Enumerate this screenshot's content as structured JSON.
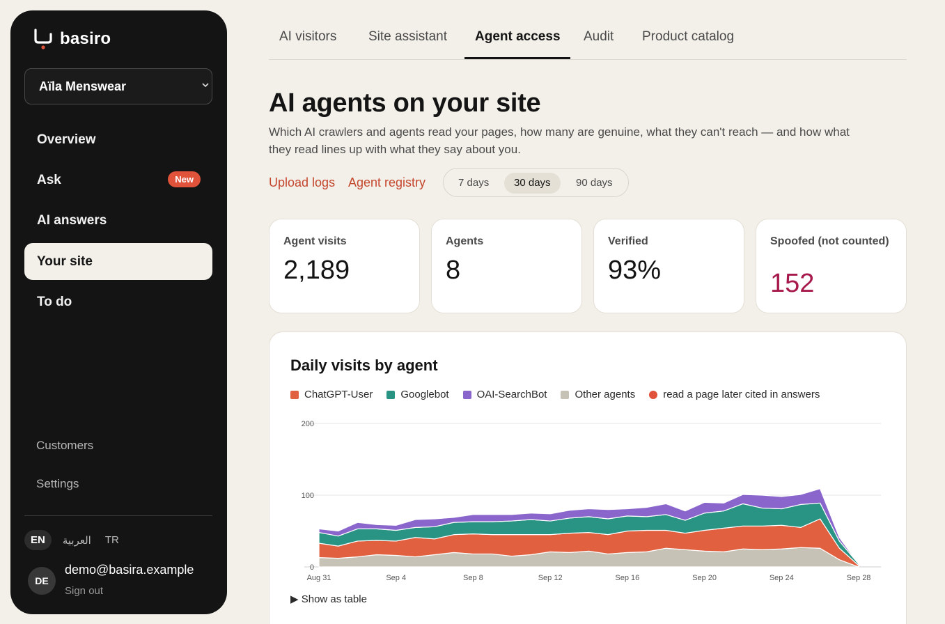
{
  "brand": {
    "name": "basiro"
  },
  "workspace": {
    "selected": "Aïla Menswear"
  },
  "nav": {
    "items": [
      {
        "label": "Overview"
      },
      {
        "label": "Ask",
        "badge": "New"
      },
      {
        "label": "AI answers"
      },
      {
        "label": "Your site",
        "active": true
      },
      {
        "label": "To do"
      }
    ],
    "secondary": [
      {
        "label": "Customers"
      },
      {
        "label": "Settings"
      }
    ]
  },
  "languages": [
    {
      "label": "EN",
      "active": true
    },
    {
      "label": "العربية"
    },
    {
      "label": "TR"
    }
  ],
  "user": {
    "initials": "DE",
    "email": "demo@basira.example",
    "sign_out": "Sign out"
  },
  "tabs": [
    {
      "label": "AI visitors"
    },
    {
      "label": "Site assistant"
    },
    {
      "label": "Agent access",
      "active": true
    },
    {
      "label": "Audit"
    },
    {
      "label": "Product catalog"
    }
  ],
  "page": {
    "title": "AI agents on your site",
    "subtitle": "Which AI crawlers and agents read your pages, how many are genuine, what they can't reach — and how what they read lines up with what they say about you."
  },
  "actions": {
    "upload_logs": "Upload logs",
    "agent_registry": "Agent registry"
  },
  "date_range": {
    "options": [
      "7 days",
      "30 days",
      "90 days"
    ],
    "selected": "30 days"
  },
  "stats": [
    {
      "label": "Agent visits",
      "value": "2,189"
    },
    {
      "label": "Agents",
      "value": "8"
    },
    {
      "label": "Verified",
      "value": "93%"
    },
    {
      "label": "Spoofed (not counted)",
      "value": "152"
    }
  ],
  "chart": {
    "show_table": "Show as table"
  },
  "colors": {
    "chatgpt": "#e0603f",
    "googlebot": "#2a9484",
    "oai": "#8a66cc",
    "other": "#c7c2b6",
    "cited": "#e0533a",
    "accent": "#c4462d",
    "alert": "#a6194a"
  },
  "chart_data": {
    "type": "area",
    "stacked": true,
    "title": "Daily visits by agent",
    "x_tick_labels": [
      "Aug 31",
      "Sep 4",
      "Sep 8",
      "Sep 12",
      "Sep 16",
      "Sep 20",
      "Sep 24",
      "Sep 28"
    ],
    "ylim": [
      0,
      200
    ],
    "y_ticks": [
      0,
      100,
      200
    ],
    "grid": true,
    "legend_position": "top",
    "x": [
      "Aug 31",
      "Sep 1",
      "Sep 2",
      "Sep 3",
      "Sep 4",
      "Sep 5",
      "Sep 6",
      "Sep 7",
      "Sep 8",
      "Sep 9",
      "Sep 10",
      "Sep 11",
      "Sep 12",
      "Sep 13",
      "Sep 14",
      "Sep 15",
      "Sep 16",
      "Sep 17",
      "Sep 18",
      "Sep 19",
      "Sep 20",
      "Sep 21",
      "Sep 22",
      "Sep 23",
      "Sep 24",
      "Sep 25",
      "Sep 26",
      "Sep 27",
      "Sep 28"
    ],
    "series": [
      {
        "name": "Other agents",
        "values": [
          13,
          12,
          14,
          17,
          16,
          14,
          17,
          20,
          18,
          18,
          15,
          17,
          21,
          20,
          22,
          18,
          20,
          21,
          26,
          24,
          22,
          21,
          25,
          24,
          25,
          27,
          26,
          10,
          0
        ]
      },
      {
        "name": "ChatGPT-User",
        "values": [
          20,
          17,
          22,
          20,
          20,
          27,
          22,
          25,
          28,
          27,
          30,
          28,
          24,
          27,
          26,
          27,
          30,
          30,
          25,
          23,
          29,
          33,
          32,
          33,
          33,
          28,
          41,
          16,
          2
        ]
      },
      {
        "name": "Googlebot",
        "values": [
          15,
          14,
          17,
          16,
          15,
          14,
          17,
          17,
          17,
          18,
          19,
          21,
          19,
          21,
          22,
          22,
          21,
          19,
          22,
          18,
          24,
          24,
          31,
          25,
          23,
          32,
          22,
          10,
          2
        ]
      },
      {
        "name": "OAI-SearchBot",
        "values": [
          5,
          7,
          9,
          6,
          7,
          11,
          11,
          7,
          10,
          10,
          9,
          9,
          10,
          11,
          11,
          13,
          10,
          13,
          15,
          13,
          15,
          11,
          13,
          18,
          17,
          14,
          20,
          5,
          0
        ]
      }
    ],
    "markers": {
      "name": "read a page later cited in answers",
      "values": []
    }
  }
}
